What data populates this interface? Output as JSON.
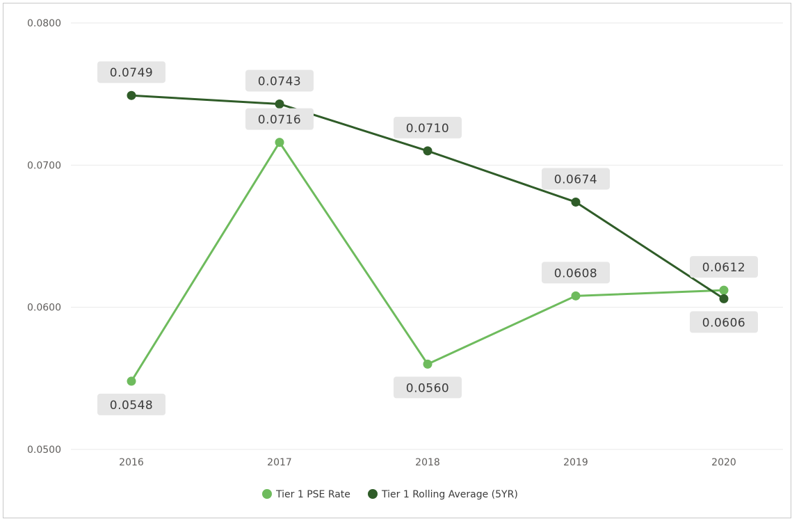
{
  "chart_data": {
    "type": "line",
    "categories": [
      "2016",
      "2017",
      "2018",
      "2019",
      "2020"
    ],
    "ylim": [
      0.05,
      0.08
    ],
    "yticks": [
      "0.0500",
      "0.0600",
      "0.0700",
      "0.0800"
    ],
    "grid": true,
    "legend_position": "bottom-center",
    "series": [
      {
        "name": "Tier 1 PSE Rate",
        "color": "#6ebb5d",
        "values": [
          0.0548,
          0.0716,
          0.056,
          0.0608,
          0.0612
        ],
        "labels": [
          "0.0548",
          "0.0716",
          "0.0560",
          "0.0608",
          "0.0612"
        ],
        "label_side": [
          "below",
          "above",
          "below",
          "above",
          "above"
        ]
      },
      {
        "name": "Tier 1 Rolling Average (5YR)",
        "color": "#2f5c28",
        "values": [
          0.0749,
          0.0743,
          0.071,
          0.0674,
          0.0606
        ],
        "labels": [
          "0.0749",
          "0.0743",
          "0.0710",
          "0.0674",
          "0.0606"
        ],
        "label_side": [
          "above",
          "above",
          "above",
          "above",
          "below"
        ]
      }
    ]
  }
}
